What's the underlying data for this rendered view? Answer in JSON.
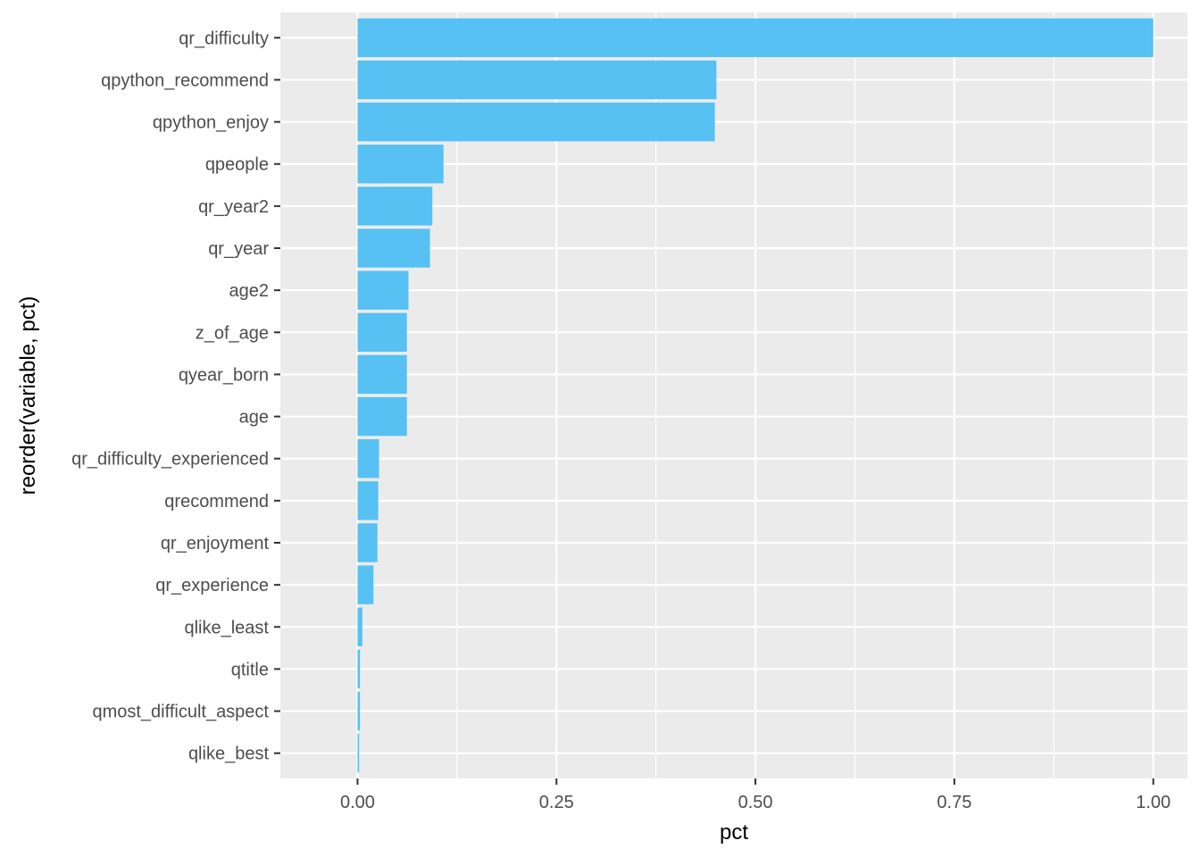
{
  "chart_data": {
    "type": "bar",
    "orientation": "horizontal",
    "xlabel": "pct",
    "ylabel": "reorder(variable, pct)",
    "xlim": [
      -0.097,
      1.043
    ],
    "x_ticks": [
      0,
      0.25,
      0.5,
      0.75,
      1.0
    ],
    "x_tick_labels": [
      "0.00",
      "0.25",
      "0.50",
      "0.75",
      "1.00"
    ],
    "grid": true,
    "legend": "none",
    "bar_color": "#56C1F2",
    "panel_color": "#EBEBEB",
    "categories": [
      "qr_difficulty",
      "qpython_recommend",
      "qpython_enjoy",
      "qpeople",
      "qr_year2",
      "qr_year",
      "age2",
      "z_of_age",
      "qyear_born",
      "age",
      "qr_difficulty_experienced",
      "qrecommend",
      "qr_enjoyment",
      "qr_experience",
      "qlike_least",
      "qtitle",
      "qmost_difficult_aspect",
      "qlike_best"
    ],
    "values": [
      1.0,
      0.451,
      0.449,
      0.108,
      0.094,
      0.091,
      0.064,
      0.062,
      0.062,
      0.062,
      0.027,
      0.026,
      0.025,
      0.02,
      0.006,
      0.003,
      0.003,
      0.002
    ]
  }
}
